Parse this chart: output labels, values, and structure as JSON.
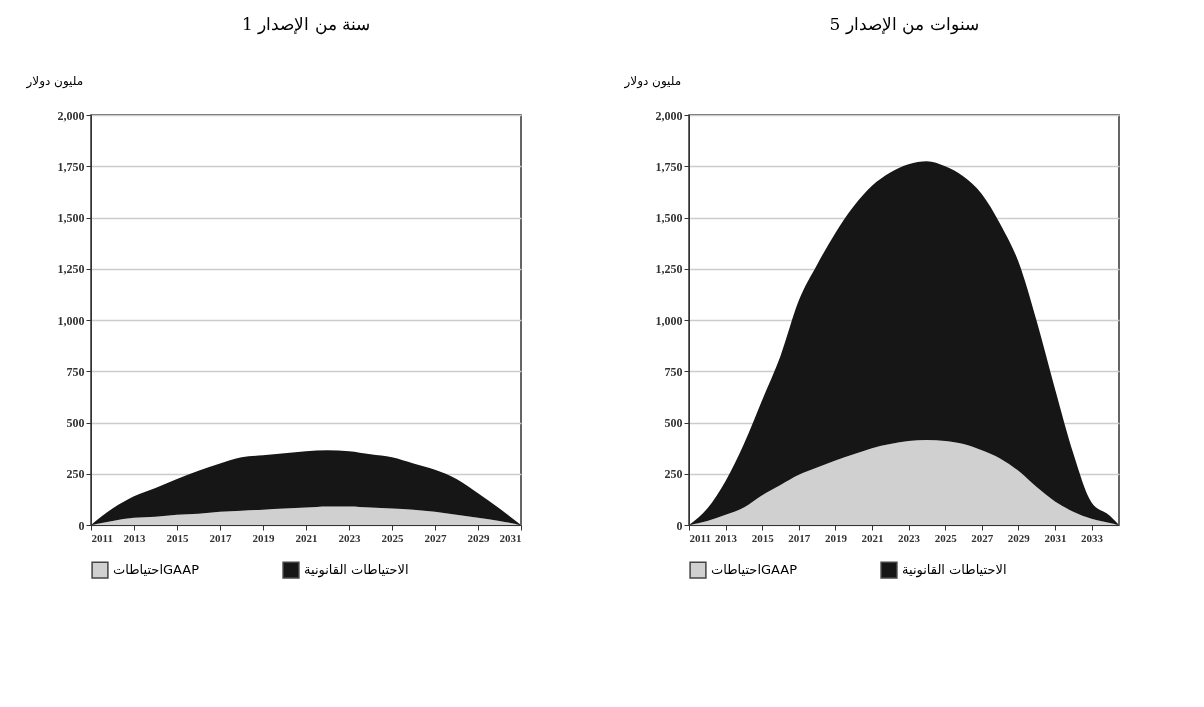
{
  "chart_data": [
    {
      "type": "area",
      "title": "1 سنة من الإصدار",
      "ylabel": "مليون دولار",
      "stacked": true,
      "legend": "bottom",
      "grid": "y",
      "x": [
        2011,
        2012,
        2013,
        2014,
        2015,
        2016,
        2017,
        2018,
        2019,
        2020,
        2021,
        2022,
        2023,
        2024,
        2025,
        2026,
        2027,
        2028,
        2029,
        2030,
        2031
      ],
      "xlim": [
        2011,
        2031
      ],
      "xticks": [
        2011,
        2013,
        2015,
        2017,
        2019,
        2021,
        2023,
        2025,
        2027,
        2029,
        2031
      ],
      "ylim": [
        0,
        2000
      ],
      "yticks": [
        0,
        250,
        500,
        750,
        {
          "value": 1000,
          "label": "1,000"
        },
        {
          "value": 1250,
          "label": "1,250"
        },
        {
          "value": 1500,
          "label": "1,500"
        },
        {
          "value": 1750,
          "label": "1,750"
        },
        {
          "value": 2000,
          "label": "2,000"
        }
      ],
      "series": [
        {
          "name": "احتياطاتGAAP",
          "color": "#cfd0cf",
          "values": [
            0,
            20,
            35,
            40,
            50,
            55,
            65,
            70,
            75,
            80,
            85,
            90,
            90,
            85,
            80,
            75,
            65,
            50,
            35,
            20,
            0
          ]
        },
        {
          "name": "الاحتياطات القانونية",
          "color": "#161616",
          "values": [
            0,
            60,
            105,
            140,
            175,
            210,
            235,
            260,
            265,
            270,
            275,
            275,
            270,
            260,
            250,
            225,
            205,
            175,
            120,
            60,
            0
          ]
        }
      ]
    },
    {
      "type": "area",
      "title": "5 سنوات من الإصدار",
      "ylabel": "مليون دولار",
      "stacked": true,
      "legend": "bottom",
      "grid": "y",
      "x": [
        2011,
        2012,
        2013,
        2014,
        2015,
        2016,
        2017,
        2018,
        2019,
        2020,
        2021,
        2022,
        2023,
        2024,
        2025,
        2026,
        2027,
        2028,
        2029,
        2030,
        2031,
        2032,
        2033,
        2034,
        2034.5
      ],
      "xlim": [
        2011,
        2034.5
      ],
      "xticks": [
        2011,
        2013,
        2015,
        2017,
        2019,
        2021,
        2023,
        2025,
        2027,
        2029,
        2031,
        2033
      ],
      "ylim": [
        0,
        2000
      ],
      "yticks": [
        0,
        250,
        500,
        750,
        {
          "value": 1000,
          "label": "1,000"
        },
        {
          "value": 1250,
          "label": "1,250"
        },
        {
          "value": 1500,
          "label": "1,500"
        },
        {
          "value": 1750,
          "label": "1,750"
        },
        {
          "value": 2000,
          "label": "2,000"
        }
      ],
      "series": [
        {
          "name": "احتياطاتGAAP",
          "color": "#cfd0cf",
          "values": [
            0,
            20,
            50,
            85,
            145,
            195,
            245,
            280,
            315,
            345,
            375,
            395,
            410,
            415,
            410,
            395,
            365,
            325,
            265,
            185,
            115,
            65,
            30,
            10,
            0
          ]
        },
        {
          "name": "الاحتياطات القانونية",
          "color": "#161616",
          "values": [
            0,
            60,
            165,
            310,
            465,
            630,
            850,
            990,
            1110,
            1210,
            1280,
            1325,
            1350,
            1360,
            1340,
            1305,
            1250,
            1145,
            1020,
            810,
            550,
            285,
            80,
            35,
            0
          ]
        }
      ]
    }
  ]
}
